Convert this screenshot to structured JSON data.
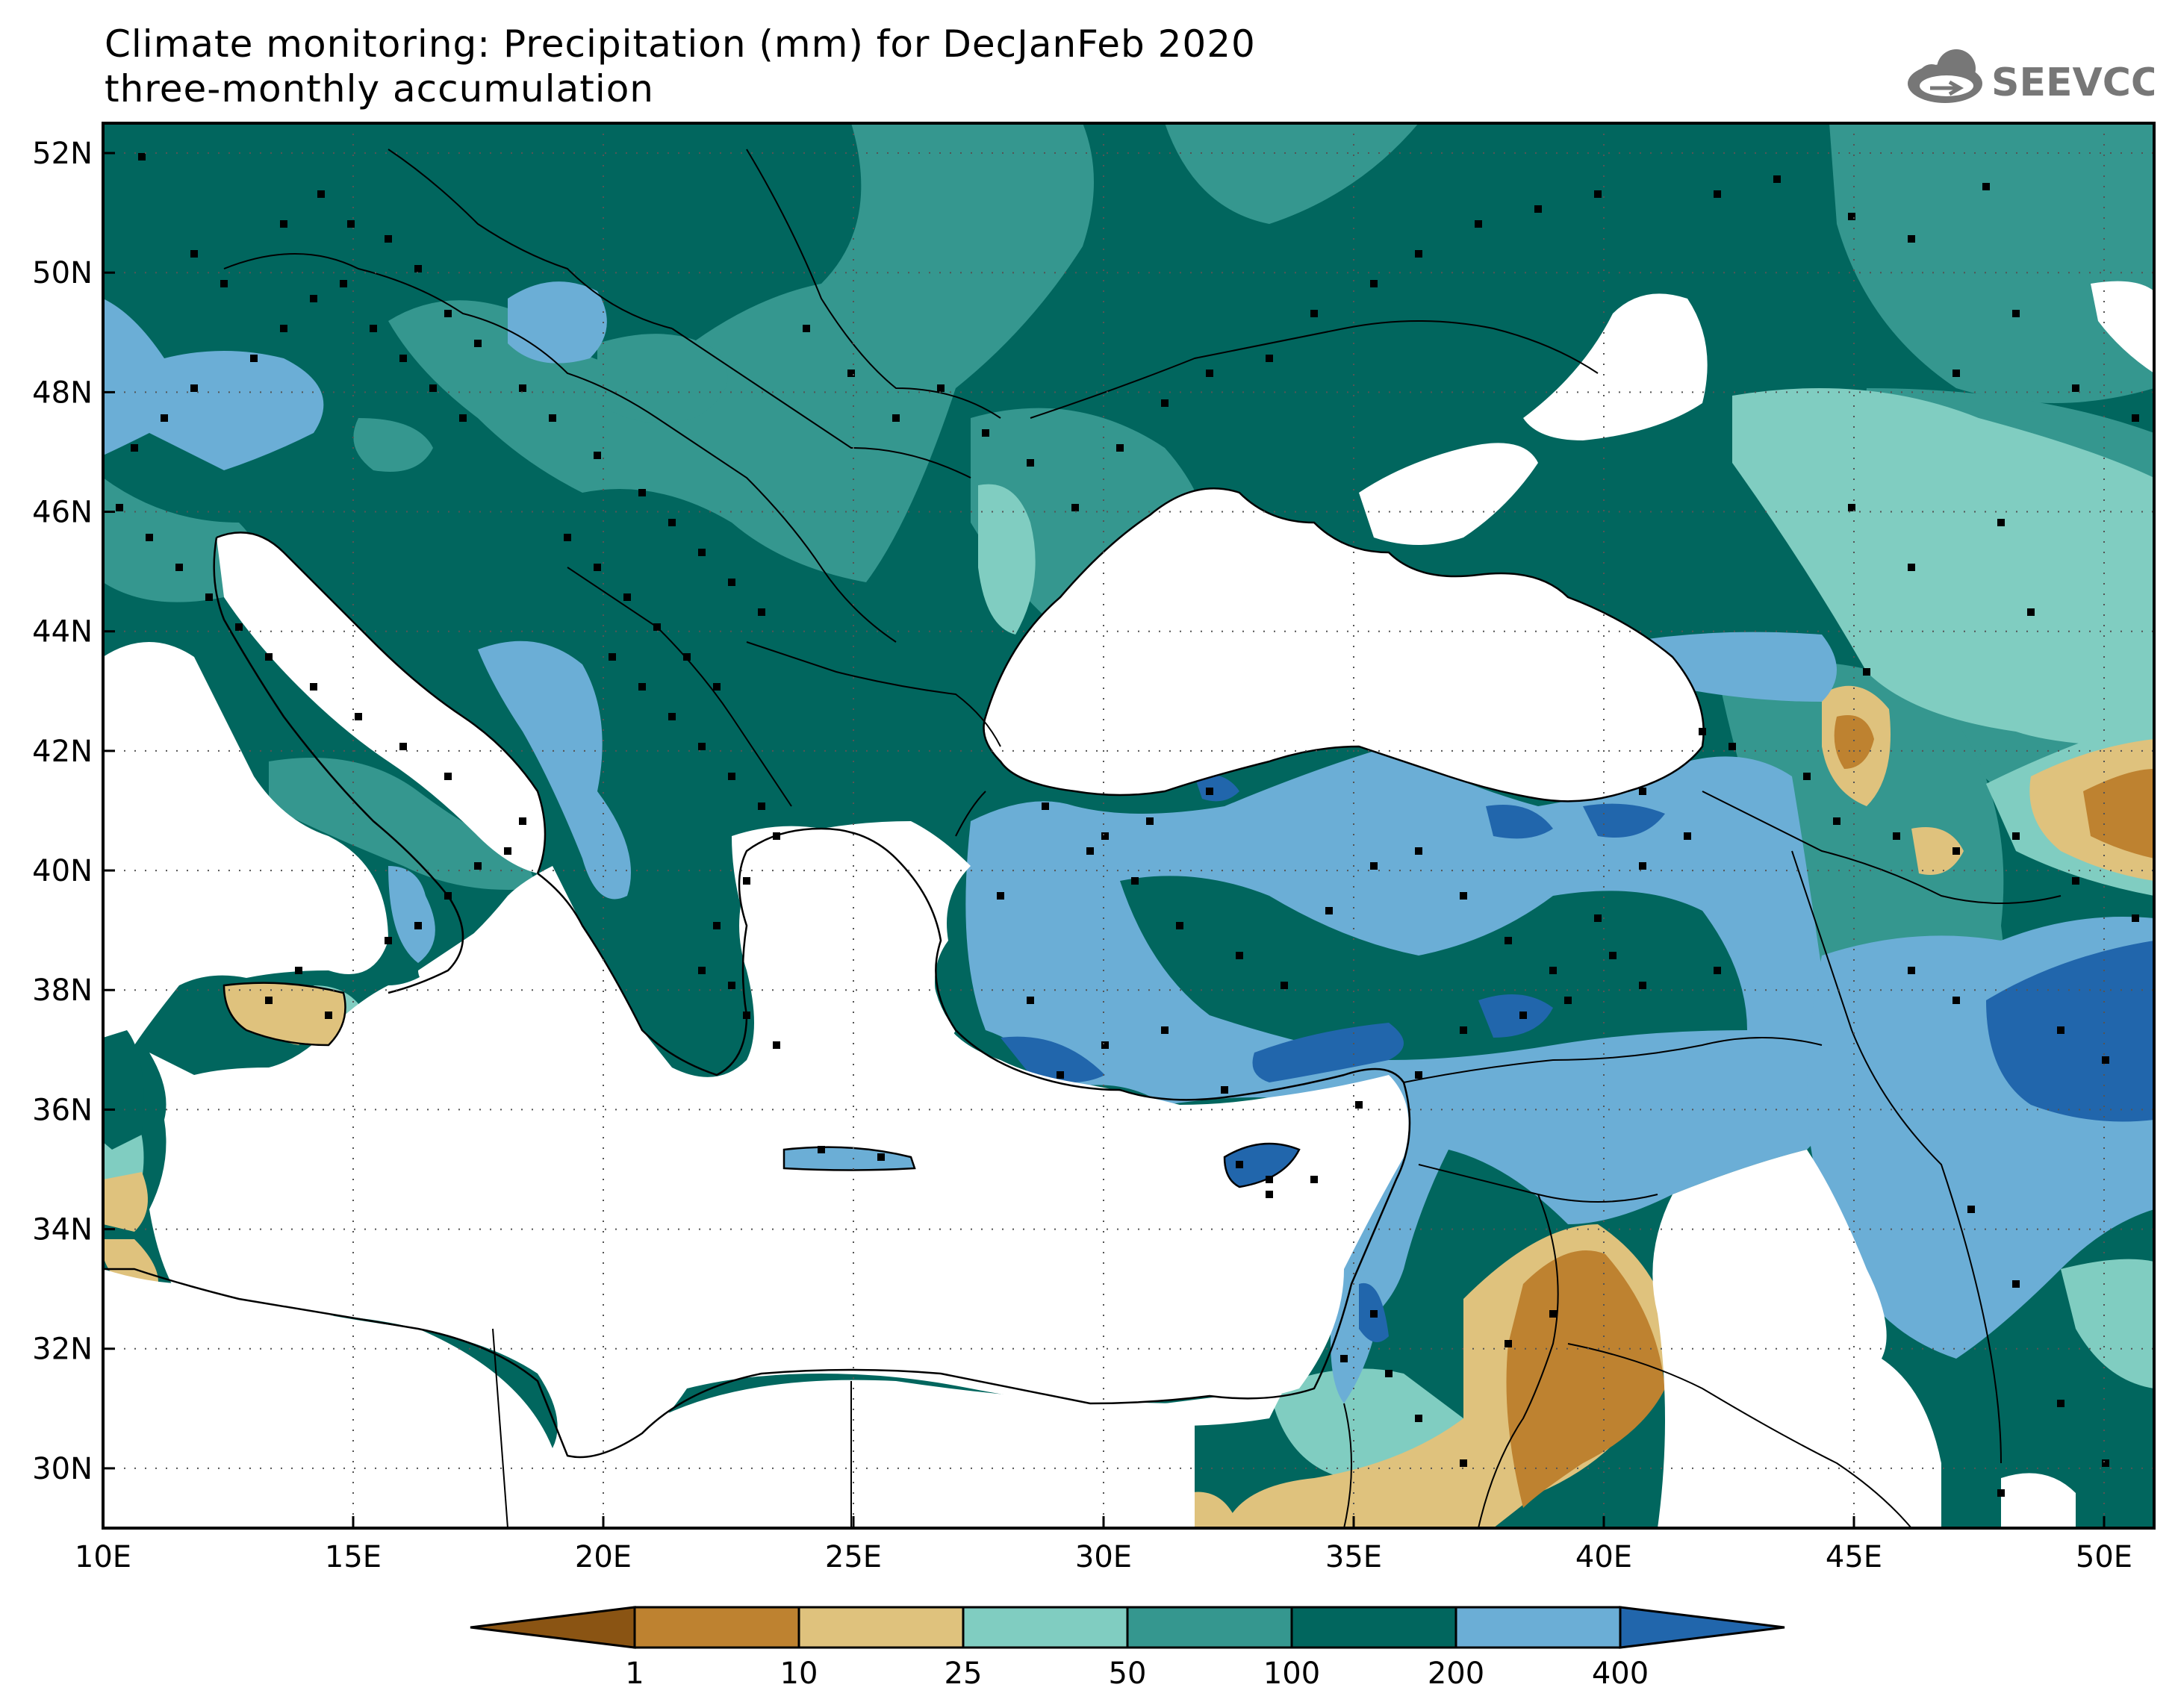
{
  "title": {
    "line1": "Climate monitoring: Precipitation (mm) for DecJanFeb 2020",
    "line2": "three-monthly accumulation"
  },
  "logo": {
    "text": "SEEVCCC",
    "icon": "cloud-icon"
  },
  "map": {
    "lon_range": [
      10,
      51
    ],
    "lat_range": [
      29,
      52.5
    ],
    "x_ticks": [
      "10E",
      "15E",
      "20E",
      "25E",
      "30E",
      "35E",
      "40E",
      "45E",
      "50E"
    ],
    "y_ticks": [
      "52N",
      "50N",
      "48N",
      "46N",
      "44N",
      "42N",
      "40N",
      "38N",
      "36N",
      "34N",
      "32N",
      "30N"
    ],
    "grid": "dotted",
    "stations_shown": true
  },
  "colorbar": {
    "labels": [
      "1",
      "10",
      "25",
      "50",
      "100",
      "200",
      "400"
    ],
    "colors": [
      "#8a5413",
      "#be8230",
      "#dfc27d",
      "#80cdc1",
      "#35978f",
      "#01665e",
      "#6baed6",
      "#2166ac"
    ]
  }
}
